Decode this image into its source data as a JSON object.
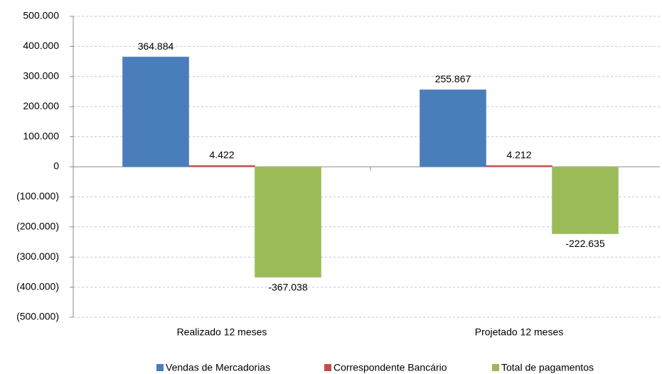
{
  "chart_data": {
    "type": "bar",
    "categories": [
      "Realizado 12 meses",
      "Projetado 12 meses"
    ],
    "series": [
      {
        "name": "Vendas de Mercadorias",
        "color": "#4a7ebb",
        "values": [
          364884,
          255867
        ],
        "value_labels": [
          "364.884",
          "255.867"
        ]
      },
      {
        "name": "Correspondente Bancário",
        "color": "#c0504d",
        "values": [
          4422,
          4212
        ],
        "value_labels": [
          "4.422",
          "4.212"
        ]
      },
      {
        "name": "Total de pagamentos",
        "color": "#9bbb59",
        "values": [
          -367038,
          -222635
        ],
        "value_labels": [
          "-367.038",
          "-222.635"
        ]
      }
    ],
    "ylim": [
      -500000,
      500000
    ],
    "yticks": [
      {
        "value": -500000,
        "label": "(500.000)"
      },
      {
        "value": -400000,
        "label": "(400.000)"
      },
      {
        "value": -300000,
        "label": "(300.000)"
      },
      {
        "value": -200000,
        "label": "(200.000)"
      },
      {
        "value": -100000,
        "label": "(100.000)"
      },
      0,
      {
        "value": 100000,
        "label": "100.000"
      },
      {
        "value": 200000,
        "label": "200.000"
      },
      {
        "value": 300000,
        "label": "300.000"
      },
      {
        "value": 400000,
        "label": "400.000"
      },
      {
        "value": 500000,
        "label": "500.000"
      }
    ],
    "grid": true,
    "legend": "bottom"
  }
}
